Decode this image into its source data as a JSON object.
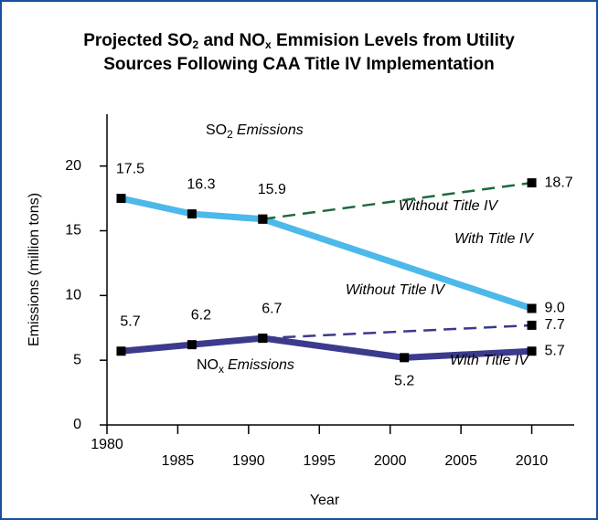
{
  "chart_data": {
    "type": "line",
    "title_lines": [
      [
        "Projected SO",
        "2",
        " and NO",
        "x",
        " Emmision Levels from Utility"
      ],
      [
        "Sources Following CAA Title IV Implementation"
      ]
    ],
    "x_label": "Year",
    "y_label": "Emissions (million tons)",
    "xlim": [
      1980,
      2013
    ],
    "xticks": [
      1980,
      1985,
      1990,
      1995,
      2000,
      2005,
      2010
    ],
    "ylim": [
      0,
      24
    ],
    "yticks": [
      0,
      5,
      10,
      15,
      20
    ],
    "groups": [
      {
        "base": "SO",
        "sub": "2",
        "rest": "Emissions"
      },
      {
        "base": "NO",
        "sub": "x",
        "rest": "Emissions"
      }
    ],
    "series": [
      {
        "name": "With Title IV",
        "group": 0,
        "color": "#4db8ea",
        "dashed": false,
        "x": [
          1981,
          1986,
          1991,
          2010
        ],
        "values": [
          17.5,
          16.3,
          15.9,
          9
        ],
        "value_labels": [
          "17.5",
          "16.3",
          "15.9",
          "9.0"
        ]
      },
      {
        "name": "Without Title IV",
        "group": 0,
        "color": "#1a6b3a",
        "dashed": true,
        "x": [
          1991,
          2010
        ],
        "values": [
          15.9,
          18.7
        ],
        "value_labels": [
          null,
          "18.7"
        ]
      },
      {
        "name": "With Title IV",
        "group": 1,
        "color": "#3b3a8c",
        "dashed": false,
        "x": [
          1981,
          1986,
          1991,
          2001,
          2010
        ],
        "values": [
          5.7,
          6.2,
          6.7,
          5.2,
          5.7
        ],
        "value_labels": [
          "5.7",
          "6.2",
          "6.7",
          "5.2",
          "5.7"
        ]
      },
      {
        "name": "Without Title IV",
        "group": 1,
        "color": "#3b3a8c",
        "dashed": true,
        "x": [
          1991,
          2010
        ],
        "values": [
          6.7,
          7.7
        ],
        "value_labels": [
          null,
          "7.7"
        ]
      }
    ]
  }
}
